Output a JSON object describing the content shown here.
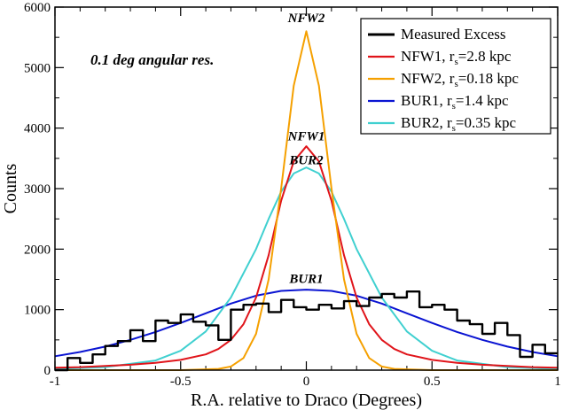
{
  "chart_data": {
    "type": "line",
    "title": "",
    "xlabel": "R.A. relative to Draco (Degrees)",
    "ylabel": "Counts",
    "xlim": [
      -1,
      1
    ],
    "ylim": [
      0,
      6000
    ],
    "x_ticks": [
      -1,
      -0.5,
      0,
      0.5,
      1
    ],
    "x_tick_labels": [
      "-1",
      "-0.5",
      "0",
      "0.5",
      "1"
    ],
    "y_ticks": [
      0,
      1000,
      2000,
      3000,
      4000,
      5000,
      6000
    ],
    "y_tick_labels": [
      "0",
      "1000",
      "2000",
      "3000",
      "4000",
      "5000",
      "6000"
    ],
    "annotation": "0.1 deg angular res.",
    "legend_position": "top-right",
    "series": [
      {
        "name": "Measured Excess",
        "legend_main": "Measured Excess",
        "legend_sub": "",
        "legend_tail": "",
        "color": "#000000",
        "style": "step",
        "x": [
          -0.95,
          -0.9,
          -0.85,
          -0.8,
          -0.75,
          -0.7,
          -0.65,
          -0.6,
          -0.55,
          -0.5,
          -0.45,
          -0.4,
          -0.35,
          -0.3,
          -0.25,
          -0.2,
          -0.15,
          -0.1,
          -0.05,
          0.0,
          0.05,
          0.1,
          0.15,
          0.2,
          0.25,
          0.3,
          0.35,
          0.4,
          0.45,
          0.5,
          0.55,
          0.6,
          0.65,
          0.7,
          0.75,
          0.8,
          0.85,
          0.9,
          0.95,
          1.0
        ],
        "values": [
          0,
          200,
          120,
          260,
          400,
          480,
          660,
          480,
          820,
          780,
          920,
          800,
          740,
          500,
          1000,
          1080,
          1100,
          960,
          1160,
          1040,
          1000,
          1080,
          1020,
          1140,
          1060,
          1200,
          1260,
          1200,
          1300,
          1040,
          1080,
          1000,
          820,
          760,
          600,
          780,
          580,
          220,
          420,
          280
        ]
      },
      {
        "name": "NFW1",
        "legend_main": "NFW1, r",
        "legend_sub": "s",
        "legend_tail": "=2.8 kpc",
        "color": "#e0141a",
        "style": "line",
        "annotation": "NFW1",
        "x": [
          -1.0,
          -0.9,
          -0.8,
          -0.7,
          -0.6,
          -0.5,
          -0.4,
          -0.35,
          -0.3,
          -0.25,
          -0.2,
          -0.15,
          -0.1,
          -0.05,
          0.0,
          0.05,
          0.1,
          0.15,
          0.2,
          0.25,
          0.3,
          0.35,
          0.4,
          0.5,
          0.6,
          0.7,
          0.8,
          0.9,
          1.0
        ],
        "values": [
          40,
          50,
          70,
          90,
          120,
          170,
          260,
          350,
          500,
          760,
          1200,
          1900,
          2800,
          3450,
          3700,
          3450,
          2800,
          1900,
          1200,
          760,
          500,
          350,
          260,
          170,
          120,
          90,
          70,
          50,
          40
        ]
      },
      {
        "name": "NFW2",
        "legend_main": "NFW2, r",
        "legend_sub": "s",
        "legend_tail": "=0.18 kpc",
        "color": "#f5a000",
        "style": "line",
        "annotation": "NFW2",
        "x": [
          -1.0,
          -0.5,
          -0.35,
          -0.3,
          -0.25,
          -0.2,
          -0.15,
          -0.1,
          -0.05,
          0.0,
          0.05,
          0.1,
          0.15,
          0.2,
          0.25,
          0.3,
          0.35,
          0.5,
          1.0
        ],
        "values": [
          0,
          0,
          20,
          60,
          200,
          600,
          1500,
          3000,
          4700,
          5600,
          4700,
          3000,
          1500,
          600,
          200,
          60,
          20,
          0,
          0
        ]
      },
      {
        "name": "BUR1",
        "legend_main": "BUR1, r",
        "legend_sub": "s",
        "legend_tail": "=1.4 kpc",
        "color": "#0a14d2",
        "style": "line",
        "annotation": "BUR1",
        "x": [
          -1.0,
          -0.9,
          -0.8,
          -0.7,
          -0.6,
          -0.5,
          -0.4,
          -0.3,
          -0.2,
          -0.1,
          0.0,
          0.1,
          0.2,
          0.3,
          0.4,
          0.5,
          0.6,
          0.7,
          0.8,
          0.9,
          1.0
        ],
        "values": [
          230,
          300,
          390,
          500,
          630,
          780,
          940,
          1100,
          1230,
          1310,
          1330,
          1310,
          1230,
          1100,
          940,
          780,
          630,
          500,
          390,
          300,
          230
        ]
      },
      {
        "name": "BUR2",
        "legend_main": "BUR2, r",
        "legend_sub": "s",
        "legend_tail": "=0.35 kpc",
        "color": "#40d0d0",
        "style": "line",
        "annotation": "BUR2",
        "x": [
          -1.0,
          -0.8,
          -0.6,
          -0.5,
          -0.4,
          -0.3,
          -0.2,
          -0.15,
          -0.1,
          -0.05,
          0.0,
          0.05,
          0.1,
          0.15,
          0.2,
          0.3,
          0.4,
          0.5,
          0.6,
          0.8,
          1.0
        ],
        "values": [
          20,
          50,
          160,
          320,
          640,
          1200,
          2000,
          2500,
          2950,
          3250,
          3350,
          3250,
          2950,
          2500,
          2000,
          1200,
          640,
          320,
          160,
          50,
          20
        ]
      }
    ],
    "curve_labels": [
      {
        "text": "NFW2",
        "x": 0.0,
        "y": 5750
      },
      {
        "text": "NFW1",
        "x": 0.0,
        "y": 3800
      },
      {
        "text": "BUR2",
        "x": 0.0,
        "y": 3400
      },
      {
        "text": "BUR1",
        "x": 0.0,
        "y": 1440
      }
    ]
  }
}
